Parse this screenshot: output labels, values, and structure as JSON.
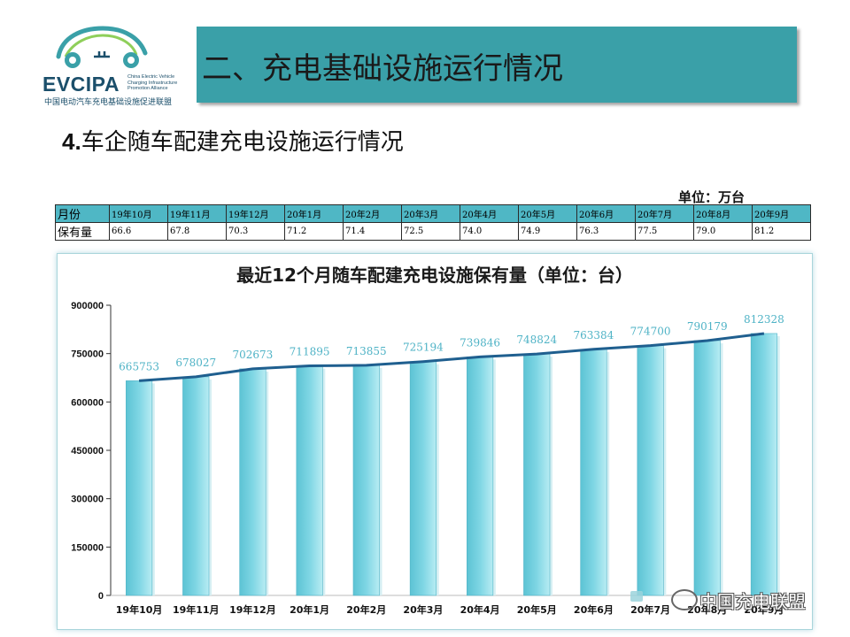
{
  "header": {
    "logo_main": "EVCIPA",
    "logo_sub": "China Electric Vehicle Charging Infrastructure Promotion Alliance",
    "logo_cn": "中国电动汽车充电基础设施促进联盟",
    "banner_title": "二、充电基础设施运行情况",
    "subtitle_num": "4.",
    "subtitle_text": "车企随车配建充电设施运行情况",
    "banner_color": "#3aa0a8"
  },
  "table": {
    "unit": "单位：万台",
    "row1_label": "月份",
    "row2_label": "保有量",
    "months": [
      "19年10月",
      "19年11月",
      "19年12月",
      "20年1月",
      "20年2月",
      "20年3月",
      "20年4月",
      "20年5月",
      "20年6月",
      "20年7月",
      "20年8月",
      "20年9月"
    ],
    "values": [
      "66.6",
      "67.8",
      "70.3",
      "71.2",
      "71.4",
      "72.5",
      "74.0",
      "74.9",
      "76.3",
      "77.5",
      "79.0",
      "81.2"
    ]
  },
  "chart_data": {
    "type": "bar",
    "title": "最近12个月随车配建充电设施保有量（单位：台）",
    "categories": [
      "19年10月",
      "19年11月",
      "19年12月",
      "20年1月",
      "20年2月",
      "20年3月",
      "20年4月",
      "20年5月",
      "20年6月",
      "20年7月",
      "20年8月",
      "20年9月"
    ],
    "values": [
      665753,
      678027,
      702673,
      711895,
      713855,
      725194,
      739846,
      748824,
      763384,
      774700,
      790179,
      812328
    ],
    "ylim": [
      0,
      900000
    ],
    "yticks": [
      0,
      150000,
      300000,
      450000,
      600000,
      750000,
      900000
    ],
    "ytick_labels": [
      "0",
      "150000",
      "300000",
      "450000",
      "600000",
      "750000",
      "900000"
    ],
    "overlay_line": true,
    "data_labels": true,
    "grid": false,
    "colors": {
      "bar": "#7fd6e4",
      "bar_edge": "#4fb3c6",
      "line": "#1f5f8f",
      "label": "#4fb3c6"
    }
  },
  "watermark": {
    "text": "中国充电联盟"
  }
}
